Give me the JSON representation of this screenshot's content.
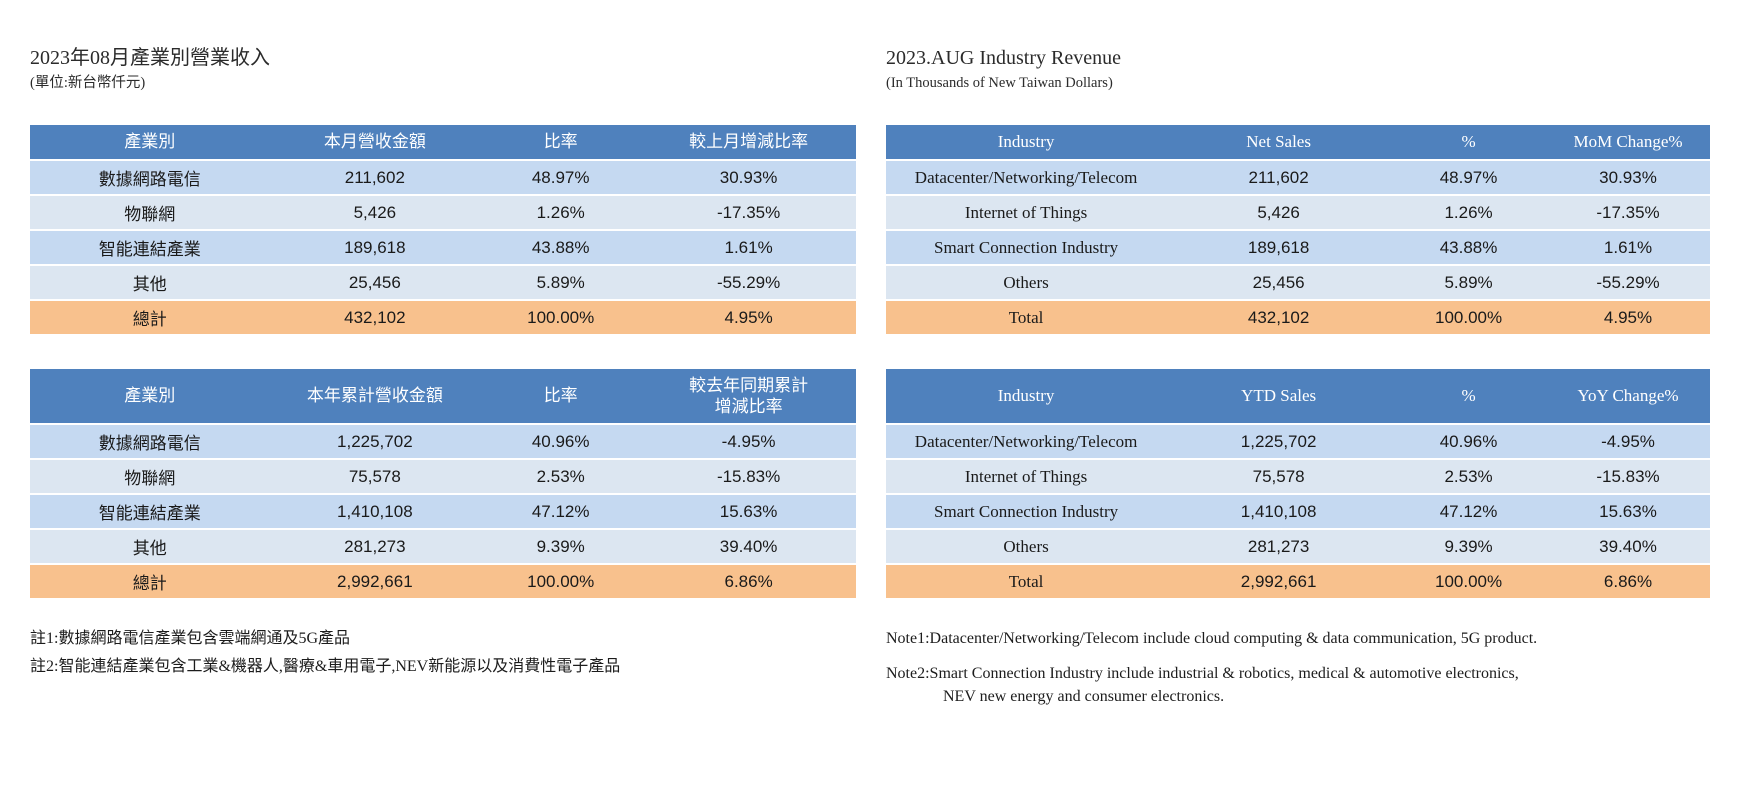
{
  "colors": {
    "header_bg": "#4f81bd",
    "row_band_dark": "#c5d9f1",
    "row_band_light": "#dce6f1",
    "total_bg": "#f8c18d",
    "header_text": "#ffffff"
  },
  "left": {
    "title": "2023年08月產業別營業收入",
    "subtitle": "(單位:新台幣仟元)",
    "monthly": {
      "headers": [
        "產業別",
        "本月營收金額",
        "比率",
        "較上月增減比率"
      ],
      "rows": [
        [
          "數據網路電信",
          "211,602",
          "48.97%",
          "30.93%"
        ],
        [
          "物聯網",
          "5,426",
          "1.26%",
          "-17.35%"
        ],
        [
          "智能連結產業",
          "189,618",
          "43.88%",
          "1.61%"
        ],
        [
          "其他",
          "25,456",
          "5.89%",
          "-55.29%"
        ]
      ],
      "total": [
        "總計",
        "432,102",
        "100.00%",
        "4.95%"
      ]
    },
    "ytd": {
      "headers": [
        "產業別",
        "本年累計營收金額",
        "比率",
        "較去年同期累計\n增減比率"
      ],
      "rows": [
        [
          "數據網路電信",
          "1,225,702",
          "40.96%",
          "-4.95%"
        ],
        [
          "物聯網",
          "75,578",
          "2.53%",
          "-15.83%"
        ],
        [
          "智能連結產業",
          "1,410,108",
          "47.12%",
          "15.63%"
        ],
        [
          "其他",
          "281,273",
          "9.39%",
          "39.40%"
        ]
      ],
      "total": [
        "總計",
        "2,992,661",
        "100.00%",
        "6.86%"
      ]
    },
    "notes": [
      "註1:數據網路電信產業包含雲端網通及5G產品",
      "註2:智能連結產業包含工業&機器人,醫療&車用電子,NEV新能源以及消費性電子產品"
    ]
  },
  "right": {
    "title": "2023.AUG Industry Revenue",
    "subtitle": "(In Thousands of New Taiwan Dollars)",
    "monthly": {
      "headers": [
        "Industry",
        "Net Sales",
        "%",
        "MoM Change%"
      ],
      "rows": [
        [
          "Datacenter/Networking/Telecom",
          "211,602",
          "48.97%",
          "30.93%"
        ],
        [
          "Internet of Things",
          "5,426",
          "1.26%",
          "-17.35%"
        ],
        [
          "Smart Connection Industry",
          "189,618",
          "43.88%",
          "1.61%"
        ],
        [
          "Others",
          "25,456",
          "5.89%",
          "-55.29%"
        ]
      ],
      "total": [
        "Total",
        "432,102",
        "100.00%",
        "4.95%"
      ]
    },
    "ytd": {
      "headers": [
        "Industry",
        "YTD Sales",
        "%",
        "YoY Change%"
      ],
      "rows": [
        [
          "Datacenter/Networking/Telecom",
          "1,225,702",
          "40.96%",
          "-4.95%"
        ],
        [
          "Internet of Things",
          "75,578",
          "2.53%",
          "-15.83%"
        ],
        [
          "Smart Connection Industry",
          "1,410,108",
          "47.12%",
          "15.63%"
        ],
        [
          "Others",
          "281,273",
          "9.39%",
          "39.40%"
        ]
      ],
      "total": [
        "Total",
        "2,992,661",
        "100.00%",
        "6.86%"
      ]
    },
    "notes": [
      "Note1:Datacenter/Networking/Telecom include cloud computing & data communication, 5G product.",
      "Note2:Smart Connection Industry include industrial & robotics, medical & automotive electronics,\nNEV new energy and consumer electronics."
    ]
  }
}
